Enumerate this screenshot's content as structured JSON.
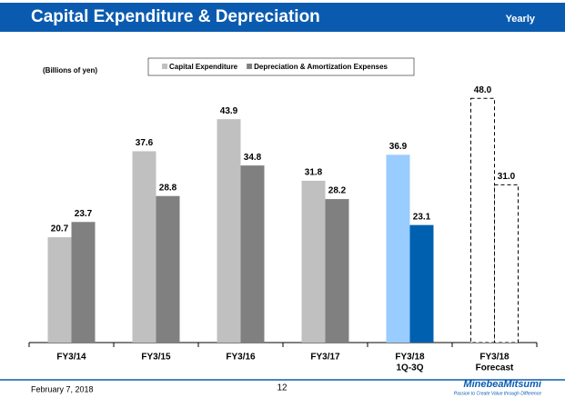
{
  "header": {
    "title": "Capital Expenditure & Depreciation",
    "period": "Yearly"
  },
  "chart_data": {
    "type": "bar",
    "unit_label": "(Billions of yen)",
    "categories": [
      "FY3/14",
      "FY3/15",
      "FY3/16",
      "FY3/17",
      [
        "FY3/18",
        "1Q-3Q"
      ],
      [
        "FY3/18",
        "Forecast"
      ]
    ],
    "series": [
      {
        "name": "Capital Expenditure",
        "color": "#c0c0c0",
        "point_colors": [
          "#c0c0c0",
          "#c0c0c0",
          "#c0c0c0",
          "#c0c0c0",
          "#99ccff",
          "#ffffff"
        ],
        "values": [
          20.7,
          37.6,
          43.9,
          31.8,
          36.9,
          48
        ],
        "value_labels": [
          "20.7",
          "37.6",
          "43.9",
          "31.8",
          "36.9",
          "48.0"
        ]
      },
      {
        "name": "Depreciation & Amortization Expenses",
        "color": "#808080",
        "point_colors": [
          "#808080",
          "#808080",
          "#808080",
          "#808080",
          "#0060b0",
          "#ffffff"
        ],
        "values": [
          23.7,
          28.8,
          34.8,
          28.2,
          23.1,
          31
        ],
        "value_labels": [
          "23.7",
          "28.8",
          "34.8",
          "28.2",
          "23.1",
          "31.0"
        ]
      }
    ],
    "dashed_categories": [
      5
    ],
    "ylim": [
      0,
      50
    ]
  },
  "footer": {
    "date": "February 7, 2018",
    "page": "12",
    "logo": "MinebeaMitsumi",
    "tagline": "Passion to Create Value through Difference"
  }
}
